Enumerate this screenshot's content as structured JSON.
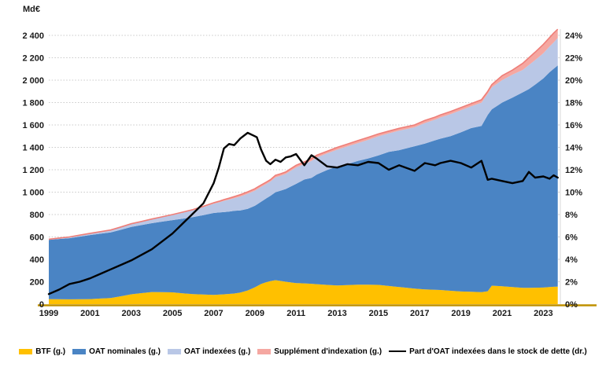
{
  "chart_data": {
    "type": "combo-stacked-area-line",
    "title": "",
    "left_axis": {
      "title": "Md€",
      "min": 0,
      "max": 2400,
      "step": 200,
      "tick_labels": [
        "0",
        "200",
        "400",
        "600",
        "800",
        "1 000",
        "1 200",
        "1 400",
        "1 600",
        "1 800",
        "2 000",
        "2 200",
        "2 400"
      ]
    },
    "right_axis": {
      "min": 0,
      "max": 24,
      "step": 2,
      "suffix": "%"
    },
    "x_axis": {
      "range": [
        1999,
        2023.75
      ],
      "ticks": [
        "1999",
        "2001",
        "2003",
        "2005",
        "2007",
        "2009",
        "2011",
        "2013",
        "2015",
        "2017",
        "2019",
        "2021",
        "2023"
      ],
      "tick_years": [
        1999,
        2001,
        2003,
        2005,
        2007,
        2009,
        2011,
        2013,
        2015,
        2017,
        2019,
        2021,
        2023
      ]
    },
    "x": [
      1999,
      1999.5,
      2000,
      2000.5,
      2001,
      2001.5,
      2002,
      2002.5,
      2003,
      2003.5,
      2004,
      2004.5,
      2005,
      2005.5,
      2006,
      2006.5,
      2007,
      2007.25,
      2007.5,
      2007.75,
      2008,
      2008.3,
      2008.65,
      2009,
      2009.1,
      2009.3,
      2009.55,
      2009.75,
      2010,
      2010.25,
      2010.5,
      2010.75,
      2011,
      2011.4,
      2011.75,
      2012,
      2012.5,
      2013,
      2013.5,
      2014,
      2014.5,
      2015,
      2015.5,
      2016,
      2016.75,
      2017.25,
      2017.75,
      2018,
      2018.5,
      2019,
      2019.5,
      2020,
      2020.3,
      2020.5,
      2021,
      2021.5,
      2022,
      2022.3,
      2022.6,
      2023,
      2023.3,
      2023.5,
      2023.7
    ],
    "series": [
      {
        "name": "BTF (g.)",
        "type": "area-stacked",
        "axis": "left",
        "color": "#FFC000",
        "values": [
          45,
          44,
          43,
          44,
          45,
          50,
          55,
          70,
          88,
          98,
          108,
          107,
          105,
          97,
          90,
          86,
          82,
          85,
          88,
          91,
          95,
          103,
          122,
          150,
          160,
          180,
          196,
          205,
          214,
          207,
          200,
          194,
          188,
          185,
          182,
          178,
          172,
          167,
          170,
          174,
          174,
          172,
          162,
          153,
          138,
          132,
          128,
          126,
          119,
          113,
          110,
          107,
          115,
          165,
          160,
          152,
          145,
          146,
          147,
          148,
          152,
          155,
          156
        ]
      },
      {
        "name": "OAT nominales (g.)",
        "type": "area-stacked",
        "axis": "left",
        "color": "#4A84C4",
        "values": [
          529,
          538,
          546,
          559,
          572,
          579,
          586,
          594,
          602,
          608,
          615,
          630,
          645,
          666,
          687,
          709,
          732,
          733,
          734,
          736,
          738,
          734,
          729,
          728,
          729,
          734,
          748,
          762,
          785,
          806,
          828,
          857,
          886,
          928,
          945,
          979,
          1025,
          1062,
          1081,
          1105,
          1127,
          1156,
          1198,
          1222,
          1272,
          1301,
          1335,
          1351,
          1381,
          1421,
          1462,
          1484,
          1574,
          1575,
          1640,
          1692,
          1746,
          1774,
          1812,
          1868,
          1918,
          1947,
          1976
        ]
      },
      {
        "name": "OAT indexées (g.)",
        "type": "area-stacked",
        "axis": "left",
        "color": "#B9C7E6",
        "values": [
          5,
          7,
          10,
          11,
          13,
          16,
          19,
          22,
          25,
          29,
          33,
          39,
          45,
          53,
          61,
          71,
          82,
          90,
          100,
          106,
          112,
          124,
          134,
          134,
          135,
          132,
          128,
          127,
          133,
          133,
          134,
          140,
          146,
          138,
          152,
          152,
          148,
          150,
          158,
          159,
          166,
          171,
          165,
          174,
          169,
          184,
          184,
          190,
          196,
          197,
          194,
          208,
          188,
          196,
          200,
          205,
          200,
          215,
          220,
          225,
          230,
          235,
          245
        ]
      },
      {
        "name": "Supplément d'indexation (g.)",
        "type": "area-stacked",
        "axis": "left",
        "color": "#F5A7A1",
        "edge_color": "#EE7E78",
        "values": [
          1,
          1,
          1,
          2,
          2,
          2,
          2,
          3,
          3,
          3,
          4,
          4,
          5,
          6,
          7,
          8,
          9,
          10,
          11,
          13,
          15,
          17,
          18,
          18,
          18,
          18,
          17,
          17,
          18,
          18,
          18,
          19,
          20,
          19,
          21,
          21,
          20,
          21,
          21,
          22,
          23,
          21,
          20,
          21,
          21,
          23,
          23,
          23,
          24,
          24,
          24,
          26,
          23,
          24,
          40,
          41,
          59,
          65,
          71,
          79,
          80,
          83,
          78
        ]
      },
      {
        "name": "Part d'OAT indexées dans le stock de dette (dr.)",
        "type": "line",
        "axis": "right",
        "color": "#000000",
        "values": [
          0.9,
          1.3,
          1.8,
          2.0,
          2.3,
          2.7,
          3.1,
          3.5,
          3.9,
          4.4,
          4.9,
          5.6,
          6.3,
          7.2,
          8.1,
          9.0,
          10.8,
          12.2,
          13.9,
          14.3,
          14.2,
          14.8,
          15.3,
          15.0,
          14.9,
          13.8,
          12.8,
          12.5,
          12.9,
          12.7,
          13.1,
          13.2,
          13.4,
          12.4,
          13.3,
          13.0,
          12.3,
          12.2,
          12.5,
          12.4,
          12.7,
          12.6,
          12.0,
          12.4,
          11.9,
          12.6,
          12.4,
          12.6,
          12.8,
          12.6,
          12.2,
          12.8,
          11.1,
          11.2,
          11.0,
          10.8,
          11.0,
          11.8,
          11.3,
          11.4,
          11.2,
          11.5,
          11.3
        ]
      }
    ],
    "layout": {
      "grid": true,
      "gridline_color": "#C9C9C9",
      "axis_line_color": "#BF9000",
      "plot_border_right_color": "#D9D9D9",
      "legend_position": "bottom"
    }
  }
}
